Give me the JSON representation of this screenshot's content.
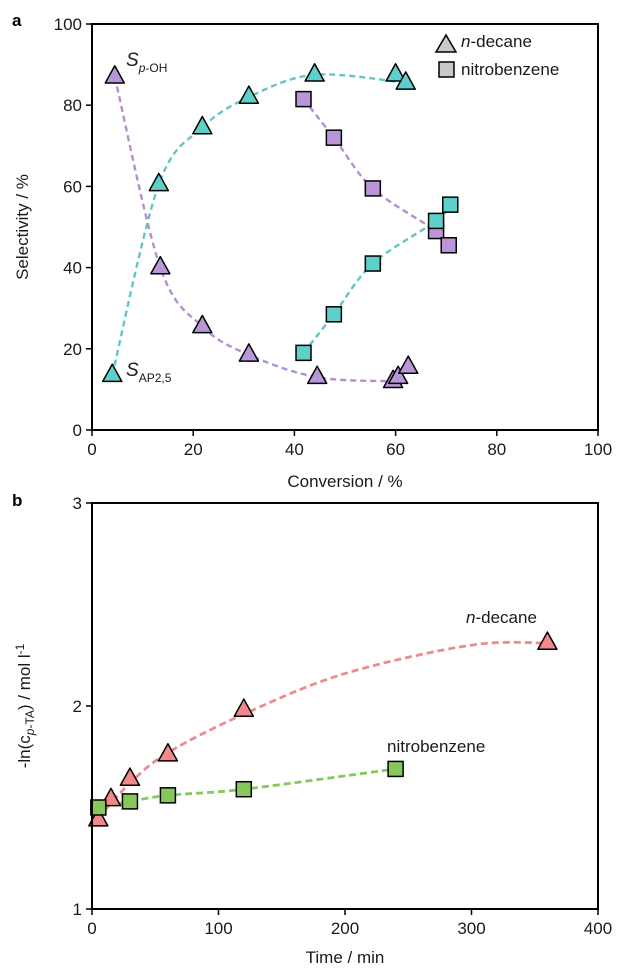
{
  "chart_data": [
    {
      "panel_label": "a",
      "type": "scatter",
      "xlabel": "Conversion / %",
      "ylabel": "Selectivity / %",
      "xlim": [
        0,
        100
      ],
      "ylim": [
        0,
        100
      ],
      "xticks": [
        0,
        20,
        40,
        60,
        80,
        100
      ],
      "yticks": [
        0,
        20,
        40,
        60,
        80,
        100
      ],
      "legend": {
        "position": "top-right",
        "entries": [
          {
            "label_italic": "n",
            "label_rest": "-decane",
            "marker": "triangle"
          },
          {
            "label_italic": "",
            "label_rest": "nitrobenzene",
            "marker": "square"
          }
        ]
      },
      "annotations": [
        {
          "main": "S",
          "sub": "p-OH",
          "sub_italic_part": "p",
          "sub_rest": "-OH"
        },
        {
          "main": "S",
          "sub": "AP2,5",
          "sub_italic_part": "",
          "sub_rest": "AP2,5"
        }
      ],
      "colors": {
        "teal": "#5ecfc9",
        "purple": "#b896d8",
        "teal_line": "#62c6c6",
        "purple_line": "#b48fd0"
      },
      "series": [
        {
          "solvent": "n-decane",
          "product": "S_p-OH",
          "marker": "triangle",
          "color": "#b896d8",
          "x": [
            4.5,
            13.5,
            21.8,
            31.0,
            44.5,
            59.5,
            60.5,
            62.5
          ],
          "y": [
            87,
            40,
            25.5,
            18.5,
            13,
            12,
            13,
            15.5
          ]
        },
        {
          "solvent": "n-decane",
          "product": "S_AP2,5",
          "marker": "triangle",
          "color": "#5ecfc9",
          "x": [
            4.0,
            13.2,
            21.8,
            31.0,
            44.0,
            60.0,
            62.0
          ],
          "y": [
            13.5,
            60.5,
            74.5,
            82,
            87.5,
            87.5,
            85.5
          ]
        },
        {
          "solvent": "nitrobenzene",
          "product": "S_p-OH",
          "marker": "square",
          "color": "#b896d8",
          "x": [
            41.8,
            47.8,
            55.5,
            68.0,
            70.5
          ],
          "y": [
            81.5,
            72,
            59.5,
            49,
            45.5
          ]
        },
        {
          "solvent": "nitrobenzene",
          "product": "S_AP2,5",
          "marker": "square",
          "color": "#5ecfc9",
          "x": [
            41.8,
            47.8,
            55.5,
            68.0,
            70.8
          ],
          "y": [
            19,
            28.5,
            41,
            51.5,
            55.5
          ]
        }
      ]
    },
    {
      "panel_label": "b",
      "type": "scatter",
      "xlabel": "Time / min",
      "ylabel": "-ln(c_p-TA) / mol l^-1",
      "ylabel_parts": {
        "pre": "-ln(c",
        "sub_italic": "p",
        "sub_rest": "-TA",
        "post": ") / mol l",
        "sup": "-1"
      },
      "xlim": [
        0,
        400
      ],
      "ylim": [
        1,
        3
      ],
      "xticks": [
        0,
        100,
        200,
        300,
        400
      ],
      "yticks": [
        1,
        2,
        3
      ],
      "annotations": [
        {
          "label_italic": "n",
          "label_rest": "-decane"
        },
        {
          "label_italic": "",
          "label_rest": "nitrobenzene"
        }
      ],
      "series": [
        {
          "name": "n-decane",
          "marker": "triangle",
          "color": "#f2878c",
          "line_color": "#ee8a90",
          "x": [
            5,
            15,
            30,
            60,
            120,
            360
          ],
          "y": [
            1.44,
            1.54,
            1.64,
            1.76,
            1.98,
            2.31
          ]
        },
        {
          "name": "nitrobenzene",
          "marker": "square",
          "color": "#86c95a",
          "line_color": "#84c95c",
          "x": [
            5,
            30,
            60,
            120,
            240
          ],
          "y": [
            1.5,
            1.53,
            1.56,
            1.59,
            1.69
          ]
        }
      ]
    }
  ]
}
